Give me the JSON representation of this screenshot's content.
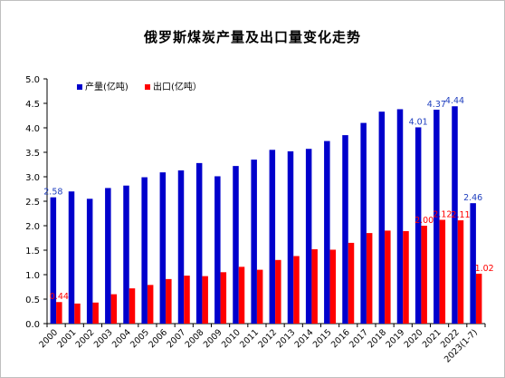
{
  "chart_data": {
    "type": "bar",
    "title": "俄罗斯煤炭产量及出口量变化走势",
    "xlabel": "",
    "ylabel": "",
    "ylim": [
      0,
      5.0
    ],
    "yticks": [
      "0.0",
      "0.5",
      "1.0",
      "1.5",
      "2.0",
      "2.5",
      "3.0",
      "3.5",
      "4.0",
      "4.5",
      "5.0"
    ],
    "grid": false,
    "legend_position": "top-left",
    "categories": [
      "2000",
      "2001",
      "2002",
      "2003",
      "2004",
      "2005",
      "2006",
      "2007",
      "2008",
      "2009",
      "2010",
      "2011",
      "2012",
      "2013",
      "2014",
      "2015",
      "2016",
      "2017",
      "2018",
      "2019",
      "2020",
      "2021",
      "2022",
      "2023(1-7)"
    ],
    "series": [
      {
        "name": "产量(亿吨)",
        "color": "#0000cc",
        "values": [
          2.58,
          2.7,
          2.55,
          2.77,
          2.82,
          2.99,
          3.09,
          3.13,
          3.28,
          3.01,
          3.22,
          3.35,
          3.55,
          3.52,
          3.57,
          3.73,
          3.85,
          4.1,
          4.33,
          4.38,
          4.01,
          4.37,
          4.44,
          2.46
        ],
        "labels": {
          "0": "2.58",
          "20": "4.01",
          "21": "4.37",
          "22": "4.44",
          "23": "2.46"
        },
        "label_color": "#1f3fbf"
      },
      {
        "name": "出口(亿吨）",
        "color": "#ff0000",
        "values": [
          0.44,
          0.41,
          0.43,
          0.6,
          0.72,
          0.79,
          0.91,
          0.98,
          0.97,
          1.05,
          1.16,
          1.1,
          1.3,
          1.38,
          1.52,
          1.51,
          1.65,
          1.85,
          1.9,
          1.89,
          2.0,
          2.12,
          2.11,
          1.02
        ],
        "labels": {
          "0": "0.44",
          "20": "2.00",
          "21": "2.12",
          "22": "2.11",
          "23": "1.02"
        },
        "label_color": "#ff0000"
      }
    ]
  }
}
